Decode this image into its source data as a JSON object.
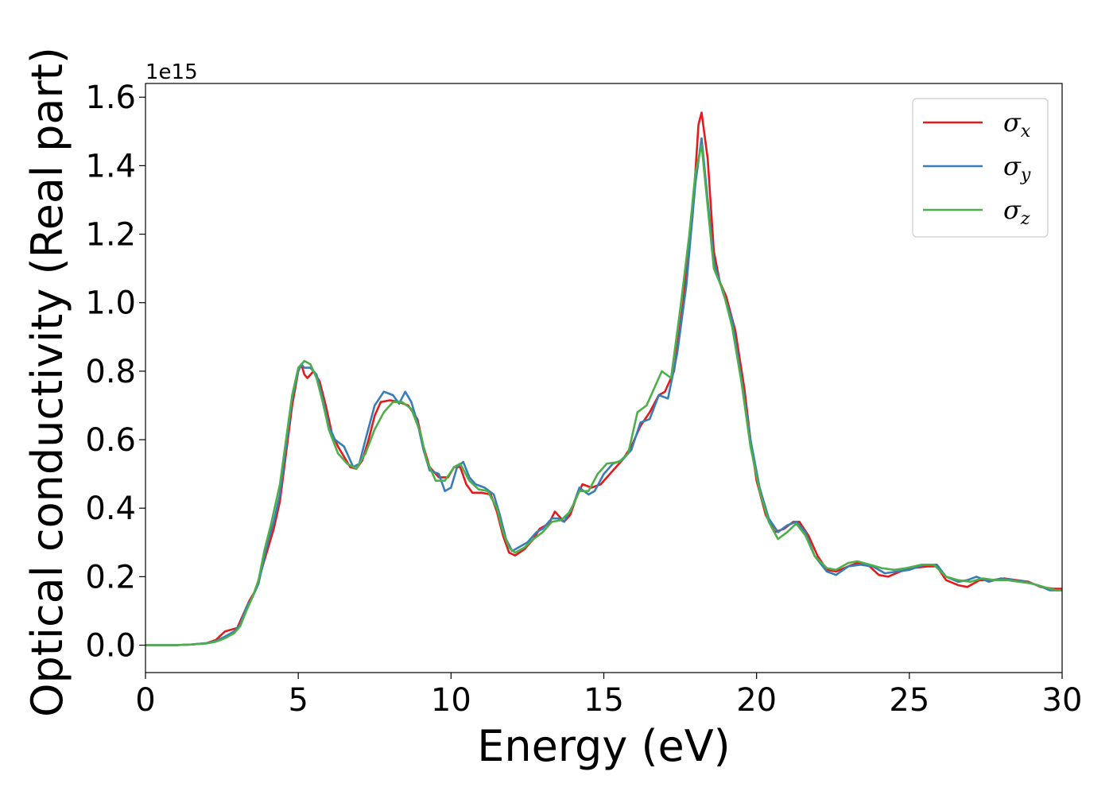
{
  "chart_data": {
    "type": "line",
    "xlabel": "Energy (eV)",
    "ylabel": "Optical conductivity (Real part)",
    "y_offset_label": "1e15",
    "xlim": [
      0,
      30
    ],
    "ylim": [
      -0.08,
      1.64
    ],
    "x_ticks": [
      0,
      5,
      10,
      15,
      20,
      25,
      30
    ],
    "x_tick_labels": [
      "0",
      "5",
      "10",
      "15",
      "20",
      "25",
      "30"
    ],
    "y_ticks": [
      0.0,
      0.2,
      0.4,
      0.6,
      0.8,
      1.0,
      1.2,
      1.4,
      1.6
    ],
    "y_tick_labels": [
      "0.0",
      "0.2",
      "0.4",
      "0.6",
      "0.8",
      "1.0",
      "1.2",
      "1.4",
      "1.6"
    ],
    "grid": false,
    "legend_position": "top-right",
    "series": [
      {
        "name": "σ",
        "subscript": "x",
        "color": "#e41a1c",
        "points": [
          [
            0,
            0
          ],
          [
            1,
            0
          ],
          [
            1.5,
            0.002
          ],
          [
            2,
            0.006
          ],
          [
            2.3,
            0.015
          ],
          [
            2.6,
            0.04
          ],
          [
            2.8,
            0.045
          ],
          [
            3,
            0.05
          ],
          [
            3.2,
            0.09
          ],
          [
            3.4,
            0.13
          ],
          [
            3.6,
            0.16
          ],
          [
            3.8,
            0.22
          ],
          [
            4,
            0.28
          ],
          [
            4.2,
            0.34
          ],
          [
            4.4,
            0.42
          ],
          [
            4.6,
            0.56
          ],
          [
            4.8,
            0.7
          ],
          [
            5,
            0.8
          ],
          [
            5.1,
            0.82
          ],
          [
            5.2,
            0.79
          ],
          [
            5.3,
            0.78
          ],
          [
            5.5,
            0.8
          ],
          [
            5.7,
            0.77
          ],
          [
            5.9,
            0.7
          ],
          [
            6.1,
            0.62
          ],
          [
            6.3,
            0.58
          ],
          [
            6.5,
            0.55
          ],
          [
            6.7,
            0.52
          ],
          [
            6.9,
            0.515
          ],
          [
            7.1,
            0.54
          ],
          [
            7.3,
            0.6
          ],
          [
            7.5,
            0.67
          ],
          [
            7.7,
            0.71
          ],
          [
            8,
            0.715
          ],
          [
            8.3,
            0.71
          ],
          [
            8.6,
            0.7
          ],
          [
            8.9,
            0.66
          ],
          [
            9.1,
            0.58
          ],
          [
            9.3,
            0.52
          ],
          [
            9.6,
            0.49
          ],
          [
            9.9,
            0.49
          ],
          [
            10.1,
            0.52
          ],
          [
            10.3,
            0.52
          ],
          [
            10.5,
            0.47
          ],
          [
            10.7,
            0.445
          ],
          [
            11,
            0.445
          ],
          [
            11.3,
            0.44
          ],
          [
            11.5,
            0.39
          ],
          [
            11.7,
            0.32
          ],
          [
            11.9,
            0.27
          ],
          [
            12.1,
            0.262
          ],
          [
            12.4,
            0.28
          ],
          [
            12.7,
            0.31
          ],
          [
            12.9,
            0.34
          ],
          [
            13.2,
            0.355
          ],
          [
            13.4,
            0.39
          ],
          [
            13.7,
            0.36
          ],
          [
            13.9,
            0.38
          ],
          [
            14.1,
            0.43
          ],
          [
            14.3,
            0.47
          ],
          [
            14.6,
            0.46
          ],
          [
            14.9,
            0.47
          ],
          [
            15.2,
            0.5
          ],
          [
            15.6,
            0.54
          ],
          [
            15.9,
            0.58
          ],
          [
            16.2,
            0.64
          ],
          [
            16.5,
            0.68
          ],
          [
            16.8,
            0.73
          ],
          [
            17,
            0.74
          ],
          [
            17.3,
            0.8
          ],
          [
            17.6,
            1.0
          ],
          [
            17.9,
            1.25
          ],
          [
            18.1,
            1.52
          ],
          [
            18.2,
            1.555
          ],
          [
            18.4,
            1.42
          ],
          [
            18.6,
            1.15
          ],
          [
            18.8,
            1.06
          ],
          [
            19,
            1.02
          ],
          [
            19.3,
            0.92
          ],
          [
            19.6,
            0.75
          ],
          [
            19.8,
            0.6
          ],
          [
            20,
            0.48
          ],
          [
            20.3,
            0.38
          ],
          [
            20.6,
            0.33
          ],
          [
            20.9,
            0.34
          ],
          [
            21.2,
            0.36
          ],
          [
            21.4,
            0.36
          ],
          [
            21.7,
            0.32
          ],
          [
            22,
            0.26
          ],
          [
            22.3,
            0.22
          ],
          [
            22.6,
            0.215
          ],
          [
            23,
            0.23
          ],
          [
            23.3,
            0.24
          ],
          [
            23.7,
            0.23
          ],
          [
            24,
            0.205
          ],
          [
            24.3,
            0.2
          ],
          [
            24.7,
            0.215
          ],
          [
            25.1,
            0.225
          ],
          [
            25.6,
            0.23
          ],
          [
            25.9,
            0.23
          ],
          [
            26.2,
            0.19
          ],
          [
            26.6,
            0.175
          ],
          [
            26.9,
            0.17
          ],
          [
            27.3,
            0.19
          ],
          [
            27.7,
            0.19
          ],
          [
            28.1,
            0.195
          ],
          [
            28.5,
            0.19
          ],
          [
            28.9,
            0.185
          ],
          [
            29.3,
            0.17
          ],
          [
            29.7,
            0.165
          ],
          [
            30,
            0.165
          ]
        ]
      },
      {
        "name": "σ",
        "subscript": "y",
        "color": "#377eb8",
        "points": [
          [
            0,
            0
          ],
          [
            1,
            0
          ],
          [
            1.5,
            0.002
          ],
          [
            2,
            0.006
          ],
          [
            2.3,
            0.012
          ],
          [
            2.6,
            0.025
          ],
          [
            2.9,
            0.04
          ],
          [
            3.1,
            0.06
          ],
          [
            3.3,
            0.11
          ],
          [
            3.5,
            0.14
          ],
          [
            3.7,
            0.18
          ],
          [
            4,
            0.3
          ],
          [
            4.2,
            0.36
          ],
          [
            4.4,
            0.44
          ],
          [
            4.6,
            0.58
          ],
          [
            4.8,
            0.72
          ],
          [
            5,
            0.8
          ],
          [
            5.1,
            0.82
          ],
          [
            5.2,
            0.81
          ],
          [
            5.4,
            0.81
          ],
          [
            5.6,
            0.79
          ],
          [
            5.8,
            0.72
          ],
          [
            6,
            0.64
          ],
          [
            6.2,
            0.6
          ],
          [
            6.5,
            0.58
          ],
          [
            6.8,
            0.52
          ],
          [
            7,
            0.53
          ],
          [
            7.2,
            0.6
          ],
          [
            7.5,
            0.7
          ],
          [
            7.8,
            0.74
          ],
          [
            8.1,
            0.73
          ],
          [
            8.3,
            0.705
          ],
          [
            8.5,
            0.74
          ],
          [
            8.7,
            0.71
          ],
          [
            8.9,
            0.65
          ],
          [
            9.1,
            0.57
          ],
          [
            9.3,
            0.51
          ],
          [
            9.6,
            0.5
          ],
          [
            9.8,
            0.45
          ],
          [
            10,
            0.46
          ],
          [
            10.2,
            0.52
          ],
          [
            10.4,
            0.535
          ],
          [
            10.6,
            0.49
          ],
          [
            10.8,
            0.47
          ],
          [
            11.1,
            0.46
          ],
          [
            11.4,
            0.44
          ],
          [
            11.6,
            0.38
          ],
          [
            11.8,
            0.31
          ],
          [
            12,
            0.275
          ],
          [
            12.3,
            0.29
          ],
          [
            12.5,
            0.3
          ],
          [
            12.8,
            0.33
          ],
          [
            13,
            0.34
          ],
          [
            13.3,
            0.37
          ],
          [
            13.5,
            0.37
          ],
          [
            13.7,
            0.36
          ],
          [
            14,
            0.41
          ],
          [
            14.2,
            0.46
          ],
          [
            14.5,
            0.44
          ],
          [
            14.7,
            0.45
          ],
          [
            15,
            0.5
          ],
          [
            15.3,
            0.53
          ],
          [
            15.6,
            0.54
          ],
          [
            15.9,
            0.57
          ],
          [
            16.2,
            0.65
          ],
          [
            16.5,
            0.66
          ],
          [
            16.8,
            0.73
          ],
          [
            17.1,
            0.72
          ],
          [
            17.4,
            0.85
          ],
          [
            17.7,
            1.05
          ],
          [
            18,
            1.35
          ],
          [
            18.2,
            1.48
          ],
          [
            18.4,
            1.3
          ],
          [
            18.6,
            1.12
          ],
          [
            18.9,
            1.03
          ],
          [
            19.2,
            0.95
          ],
          [
            19.5,
            0.78
          ],
          [
            19.8,
            0.6
          ],
          [
            20.1,
            0.46
          ],
          [
            20.4,
            0.37
          ],
          [
            20.7,
            0.33
          ],
          [
            21,
            0.35
          ],
          [
            21.3,
            0.36
          ],
          [
            21.6,
            0.33
          ],
          [
            21.9,
            0.26
          ],
          [
            22.3,
            0.215
          ],
          [
            22.6,
            0.205
          ],
          [
            23,
            0.23
          ],
          [
            23.4,
            0.235
          ],
          [
            23.8,
            0.23
          ],
          [
            24.2,
            0.21
          ],
          [
            24.6,
            0.215
          ],
          [
            25,
            0.22
          ],
          [
            25.5,
            0.235
          ],
          [
            25.9,
            0.235
          ],
          [
            26.2,
            0.2
          ],
          [
            26.6,
            0.185
          ],
          [
            26.9,
            0.19
          ],
          [
            27.2,
            0.2
          ],
          [
            27.6,
            0.185
          ],
          [
            28,
            0.195
          ],
          [
            28.4,
            0.19
          ],
          [
            28.8,
            0.185
          ],
          [
            29.2,
            0.175
          ],
          [
            29.6,
            0.16
          ],
          [
            30,
            0.16
          ]
        ]
      },
      {
        "name": "σ",
        "subscript": "z",
        "color": "#4daf4a",
        "points": [
          [
            0,
            0
          ],
          [
            1,
            0
          ],
          [
            1.5,
            0.002
          ],
          [
            2,
            0.005
          ],
          [
            2.3,
            0.01
          ],
          [
            2.6,
            0.02
          ],
          [
            2.9,
            0.035
          ],
          [
            3.1,
            0.055
          ],
          [
            3.3,
            0.1
          ],
          [
            3.5,
            0.14
          ],
          [
            3.7,
            0.19
          ],
          [
            3.9,
            0.28
          ],
          [
            4.1,
            0.35
          ],
          [
            4.4,
            0.47
          ],
          [
            4.6,
            0.6
          ],
          [
            4.8,
            0.73
          ],
          [
            5,
            0.81
          ],
          [
            5.2,
            0.83
          ],
          [
            5.4,
            0.82
          ],
          [
            5.6,
            0.78
          ],
          [
            5.8,
            0.71
          ],
          [
            6,
            0.63
          ],
          [
            6.3,
            0.56
          ],
          [
            6.6,
            0.53
          ],
          [
            6.9,
            0.515
          ],
          [
            7.2,
            0.56
          ],
          [
            7.5,
            0.63
          ],
          [
            7.8,
            0.68
          ],
          [
            8.1,
            0.71
          ],
          [
            8.4,
            0.71
          ],
          [
            8.7,
            0.69
          ],
          [
            9,
            0.62
          ],
          [
            9.2,
            0.54
          ],
          [
            9.5,
            0.48
          ],
          [
            9.8,
            0.48
          ],
          [
            10.1,
            0.52
          ],
          [
            10.3,
            0.53
          ],
          [
            10.6,
            0.48
          ],
          [
            10.9,
            0.455
          ],
          [
            11.2,
            0.45
          ],
          [
            11.5,
            0.4
          ],
          [
            11.7,
            0.33
          ],
          [
            11.9,
            0.285
          ],
          [
            12.1,
            0.27
          ],
          [
            12.4,
            0.285
          ],
          [
            12.7,
            0.31
          ],
          [
            13,
            0.33
          ],
          [
            13.3,
            0.36
          ],
          [
            13.6,
            0.365
          ],
          [
            13.9,
            0.39
          ],
          [
            14.2,
            0.45
          ],
          [
            14.5,
            0.45
          ],
          [
            14.8,
            0.5
          ],
          [
            15.1,
            0.53
          ],
          [
            15.5,
            0.535
          ],
          [
            15.8,
            0.56
          ],
          [
            16.1,
            0.68
          ],
          [
            16.4,
            0.7
          ],
          [
            16.7,
            0.76
          ],
          [
            16.9,
            0.8
          ],
          [
            17.2,
            0.78
          ],
          [
            17.5,
            0.98
          ],
          [
            17.8,
            1.2
          ],
          [
            18,
            1.38
          ],
          [
            18.2,
            1.46
          ],
          [
            18.4,
            1.28
          ],
          [
            18.6,
            1.1
          ],
          [
            18.9,
            1.035
          ],
          [
            19.2,
            0.93
          ],
          [
            19.5,
            0.77
          ],
          [
            19.8,
            0.58
          ],
          [
            20.1,
            0.45
          ],
          [
            20.4,
            0.36
          ],
          [
            20.7,
            0.31
          ],
          [
            21,
            0.33
          ],
          [
            21.3,
            0.355
          ],
          [
            21.6,
            0.32
          ],
          [
            21.9,
            0.26
          ],
          [
            22.3,
            0.225
          ],
          [
            22.6,
            0.22
          ],
          [
            23,
            0.24
          ],
          [
            23.3,
            0.245
          ],
          [
            23.7,
            0.235
          ],
          [
            24.1,
            0.225
          ],
          [
            24.5,
            0.22
          ],
          [
            24.9,
            0.225
          ],
          [
            25.4,
            0.235
          ],
          [
            25.8,
            0.235
          ],
          [
            26.2,
            0.2
          ],
          [
            26.6,
            0.19
          ],
          [
            27,
            0.185
          ],
          [
            27.4,
            0.195
          ],
          [
            27.8,
            0.19
          ],
          [
            28.2,
            0.19
          ],
          [
            28.6,
            0.185
          ],
          [
            29,
            0.18
          ],
          [
            29.4,
            0.17
          ],
          [
            29.8,
            0.16
          ],
          [
            30,
            0.16
          ]
        ]
      }
    ]
  }
}
